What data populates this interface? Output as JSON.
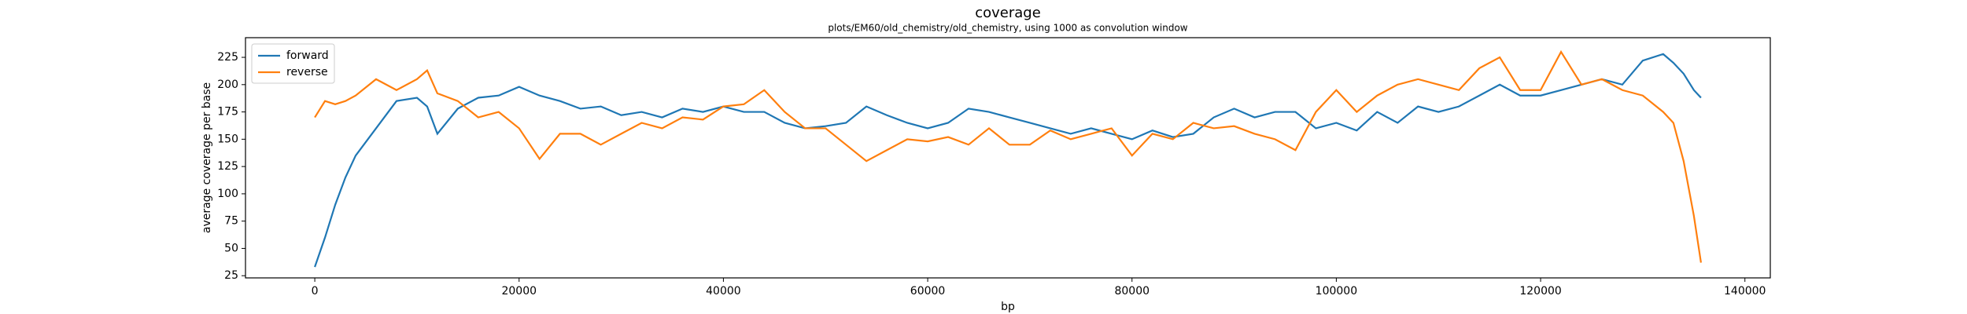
{
  "chart_data": {
    "type": "line",
    "title": "coverage",
    "subtitle": "plots/EM60/old_chemistry/old_chemistry, using 1000 as convolution window",
    "xlabel": "bp",
    "ylabel": "average coverage per base",
    "x": [
      0,
      1000,
      2000,
      3000,
      4000,
      6000,
      8000,
      10000,
      11000,
      12000,
      14000,
      16000,
      18000,
      20000,
      22000,
      24000,
      26000,
      28000,
      30000,
      32000,
      34000,
      36000,
      38000,
      40000,
      42000,
      44000,
      46000,
      48000,
      50000,
      52000,
      54000,
      56000,
      58000,
      60000,
      62000,
      64000,
      66000,
      68000,
      70000,
      72000,
      74000,
      76000,
      78000,
      80000,
      82000,
      84000,
      86000,
      88000,
      90000,
      92000,
      94000,
      96000,
      98000,
      100000,
      102000,
      104000,
      106000,
      108000,
      110000,
      112000,
      114000,
      116000,
      118000,
      120000,
      122000,
      124000,
      126000,
      128000,
      130000,
      132000,
      133000,
      134000,
      135000,
      135700
    ],
    "series": [
      {
        "name": "forward",
        "color": "#1f77b4",
        "values": [
          33,
          60,
          90,
          115,
          135,
          160,
          185,
          188,
          180,
          155,
          178,
          188,
          190,
          198,
          190,
          185,
          178,
          180,
          172,
          175,
          170,
          178,
          175,
          180,
          175,
          175,
          165,
          160,
          162,
          165,
          180,
          172,
          165,
          160,
          165,
          178,
          175,
          170,
          165,
          160,
          155,
          160,
          155,
          150,
          158,
          152,
          155,
          170,
          178,
          170,
          175,
          175,
          160,
          165,
          158,
          175,
          165,
          180,
          175,
          180,
          190,
          200,
          190,
          190,
          195,
          200,
          205,
          200,
          222,
          228,
          220,
          210,
          195,
          188
        ]
      },
      {
        "name": "reverse",
        "color": "#ff7f0e",
        "values": [
          170,
          185,
          182,
          185,
          190,
          205,
          195,
          205,
          213,
          192,
          185,
          170,
          175,
          160,
          132,
          155,
          155,
          145,
          155,
          165,
          160,
          170,
          168,
          180,
          182,
          195,
          175,
          160,
          160,
          145,
          130,
          140,
          150,
          148,
          152,
          145,
          160,
          145,
          145,
          158,
          150,
          155,
          160,
          135,
          155,
          150,
          165,
          160,
          162,
          155,
          150,
          140,
          175,
          195,
          175,
          190,
          200,
          205,
          200,
          195,
          215,
          225,
          195,
          195,
          230,
          200,
          205,
          195,
          190,
          175,
          165,
          130,
          80,
          37
        ]
      }
    ],
    "xlim": [
      -6785,
      142485
    ],
    "xticks": [
      0,
      20000,
      40000,
      60000,
      80000,
      100000,
      120000,
      140000
    ],
    "ylim": [
      23,
      243
    ],
    "yticks": [
      25,
      50,
      75,
      100,
      125,
      150,
      175,
      200,
      225
    ],
    "legend": "upper left"
  }
}
